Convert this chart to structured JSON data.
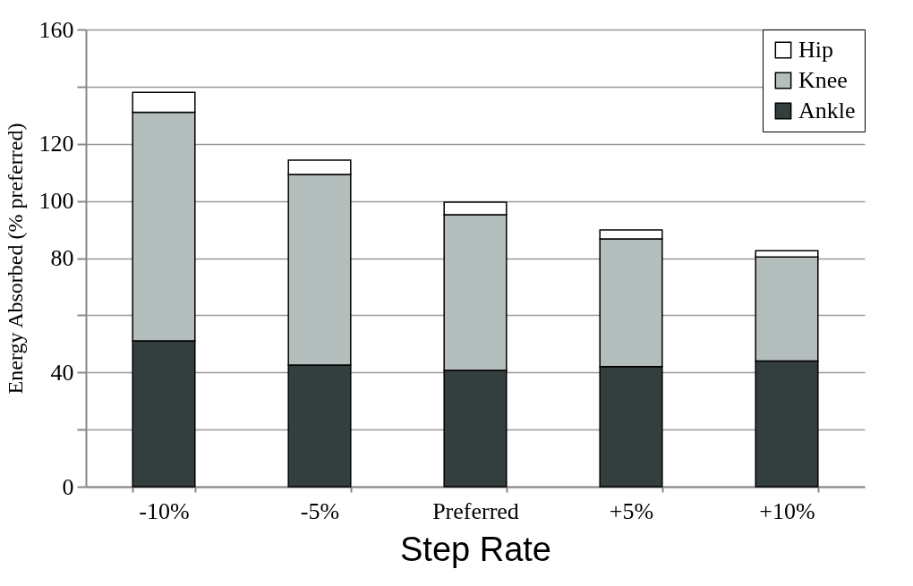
{
  "chart_data": {
    "type": "bar",
    "xlabel": "Step Rate",
    "ylabel": "Energy Absorbed (% preferred)",
    "categories": [
      "-10%",
      "-5%",
      "Preferred",
      "+5%",
      "+10%"
    ],
    "stacked": true,
    "series": [
      {
        "name": "Ankle",
        "color": "#333f3f",
        "values": [
          51,
          42.6,
          40.7,
          42,
          44
        ]
      },
      {
        "name": "Knee",
        "color": "#b4bebd",
        "values": [
          80,
          66.7,
          54.5,
          44.7,
          36.4
        ]
      },
      {
        "name": "Hip",
        "color": "#ffffff",
        "values": [
          7,
          5,
          4.4,
          3.2,
          2.2
        ]
      }
    ],
    "ylim": [
      0,
      160
    ],
    "yticks": [
      0,
      {
        "value": 20,
        "label": null
      },
      40,
      {
        "value": 60,
        "label": null
      },
      80,
      100,
      120,
      {
        "value": 140,
        "label": null
      },
      160
    ],
    "grid": "y",
    "legend": "top right"
  }
}
